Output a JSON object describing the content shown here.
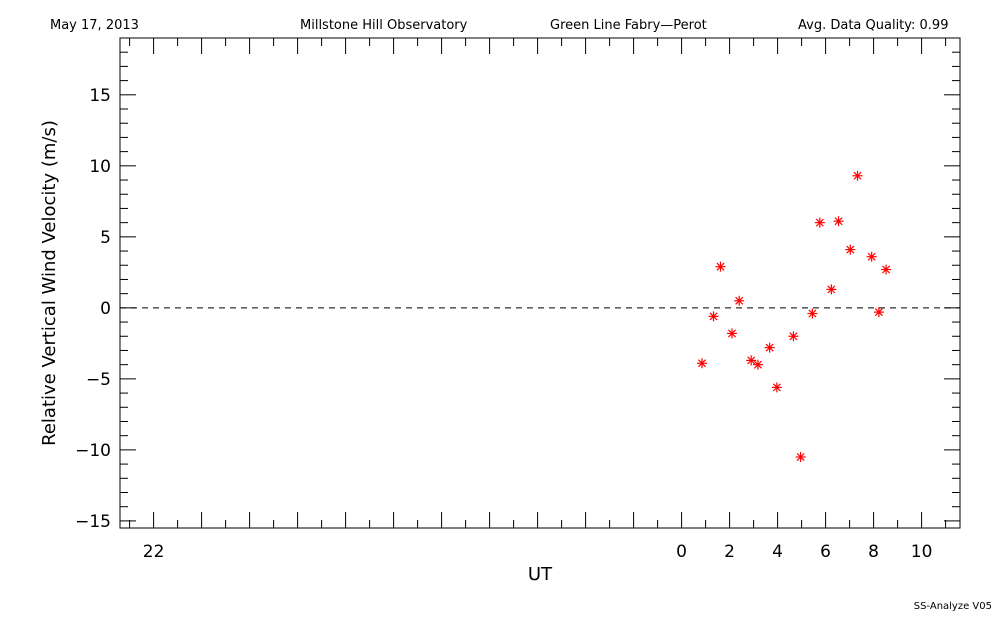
{
  "header": {
    "date": "May 17, 2013",
    "observatory": "Millstone Hill Observatory",
    "instrument": "Green Line Fabry—Perot",
    "quality": "Avg. Data Quality: 0.99"
  },
  "footer": {
    "version": "SS-Analyze V05"
  },
  "colors": {
    "points": "#ff0000",
    "axes": "#000000",
    "zero_line": "#000000"
  },
  "chart_data": {
    "type": "scatter",
    "title": "",
    "xlabel": "UT",
    "ylabel": "Relative Vertical Wind Velocity (m/s)",
    "xlim": [
      -23.4,
      11.6
    ],
    "ylim": [
      -15.5,
      19
    ],
    "x_tick_values": [
      -22,
      0,
      2,
      4,
      6,
      8,
      10
    ],
    "x_tick_labels": [
      "22",
      "0",
      "2",
      "4",
      "6",
      "8",
      "10"
    ],
    "y_tick_values": [
      -15,
      -10,
      -5,
      0,
      5,
      10,
      15
    ],
    "y_tick_labels": [
      "−15",
      "−10",
      "−5",
      "0",
      "5",
      "10",
      "15"
    ],
    "reference_line": {
      "y": 0,
      "style": "dashed"
    },
    "marker": "asterisk",
    "grid": false,
    "series": [
      {
        "x": [
          0.85,
          1.33,
          1.62,
          2.1,
          2.4,
          2.9,
          3.18,
          3.67,
          3.97,
          4.66,
          4.96,
          5.45,
          5.76,
          6.24,
          6.54,
          7.03,
          7.33,
          7.92,
          8.22,
          8.52
        ],
        "y": [
          -3.9,
          -0.6,
          2.9,
          -1.8,
          0.5,
          -3.7,
          -4.0,
          -2.8,
          -5.6,
          -2.0,
          -10.5,
          -0.4,
          6.0,
          1.3,
          6.1,
          4.1,
          9.3,
          3.6,
          -0.3,
          2.7
        ]
      }
    ]
  }
}
